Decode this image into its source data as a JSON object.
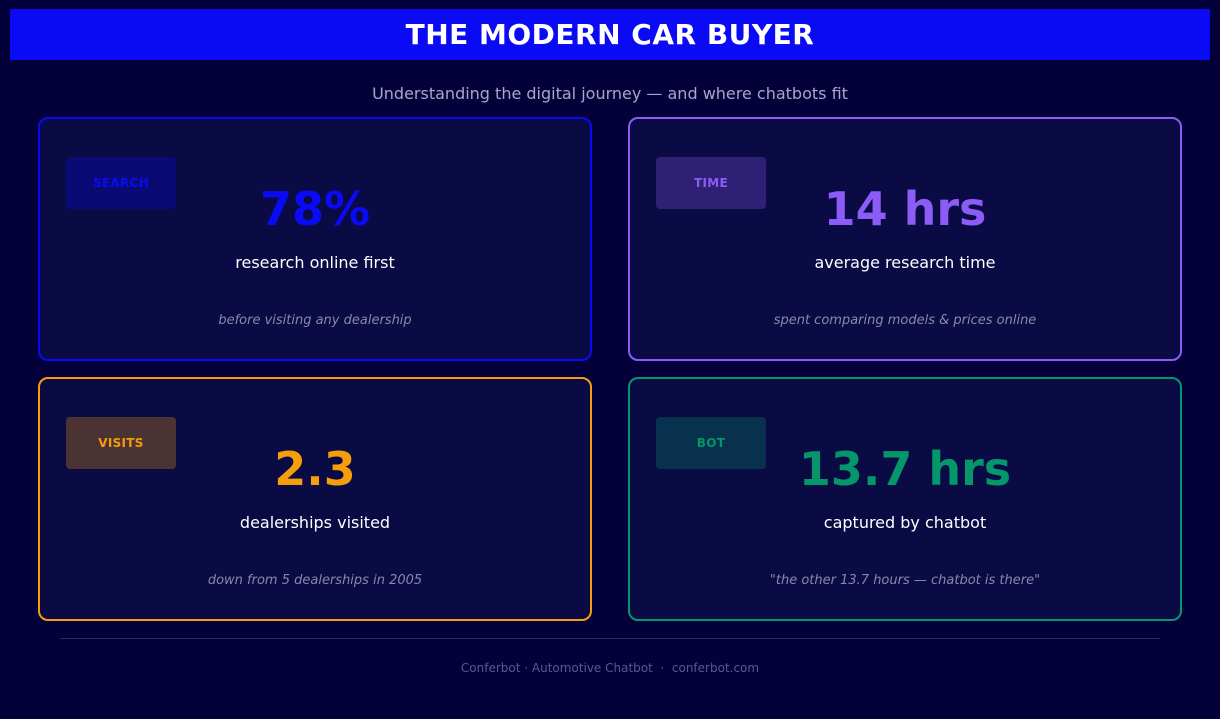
{
  "header": {
    "title": "THE MODERN CAR BUYER"
  },
  "subtitle": "Understanding the digital journey — and where chatbots fit",
  "cards": [
    {
      "tag": "SEARCH",
      "value": "78%",
      "label": "research online first",
      "note": "before visiting any dealership",
      "color": "#0a0af5"
    },
    {
      "tag": "TIME",
      "value": "14 hrs",
      "label": "average research time",
      "note": "spent comparing models & prices online",
      "color": "#8b5cf6"
    },
    {
      "tag": "VISITS",
      "value": "2.3",
      "label": "dealerships visited",
      "note": "down from 5 dealerships in 2005",
      "color": "#f59e0b"
    },
    {
      "tag": "BOT",
      "value": "13.7 hrs",
      "label": "captured by chatbot",
      "note": "\"the other 13.7 hours — chatbot is there\"",
      "color": "#059669"
    }
  ],
  "footer": {
    "text": "Conferbot · Automotive Chatbot  ·  conferbot.com"
  }
}
